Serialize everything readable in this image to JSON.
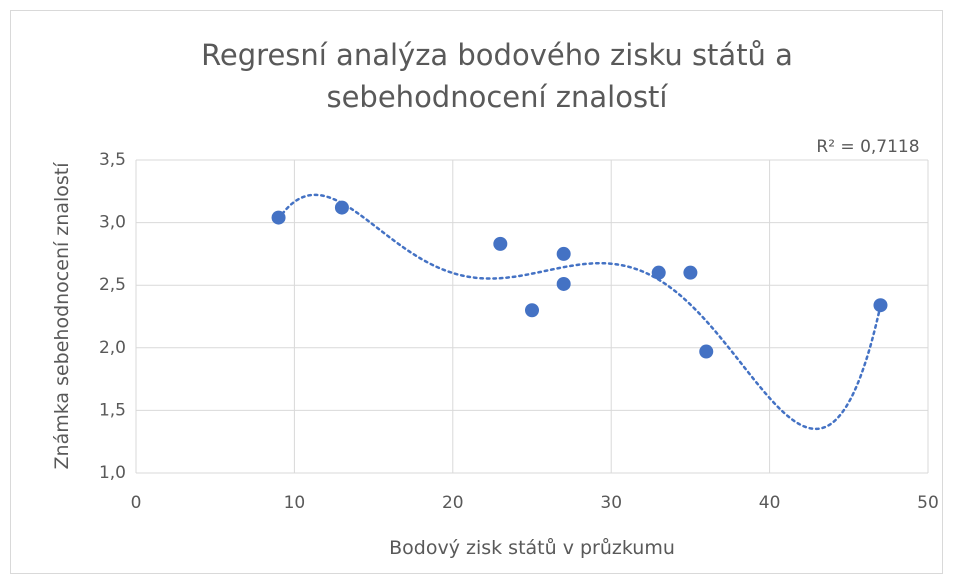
{
  "chart_data": {
    "type": "scatter",
    "title": [
      "Regresní analýza bodového zisku států a",
      "sebehodnocení znalostí"
    ],
    "x_label": "Bodový zisk států v průzkumu",
    "y_label": "Známka sebehodnocení znalostí",
    "series": [
      {
        "name": "Známka sebehodnocení znalostí",
        "color": "#4472c4",
        "x": [
          9,
          13,
          23,
          25,
          27,
          27,
          33,
          35,
          36,
          47
        ],
        "values": [
          3.04,
          3.12,
          2.83,
          2.3,
          2.75,
          2.51,
          2.6,
          2.6,
          1.97,
          2.34
        ]
      }
    ],
    "trendline": {
      "type": "polynomial",
      "order": 5,
      "label": "R² = 0,7118"
    },
    "xlim": [
      0,
      50
    ],
    "xticks": [
      0,
      10,
      20,
      30,
      40,
      50
    ],
    "ylim": [
      1.0,
      3.5
    ],
    "yticks": [
      {
        "value": 1.0,
        "label": "1,0"
      },
      {
        "value": 1.5,
        "label": "1,5"
      },
      {
        "value": 2.0,
        "label": "2,0"
      },
      {
        "value": 2.5,
        "label": "2,5"
      },
      {
        "value": 3.0,
        "label": "3,0"
      },
      {
        "value": 3.5,
        "label": "3,5"
      }
    ],
    "grid": true
  }
}
